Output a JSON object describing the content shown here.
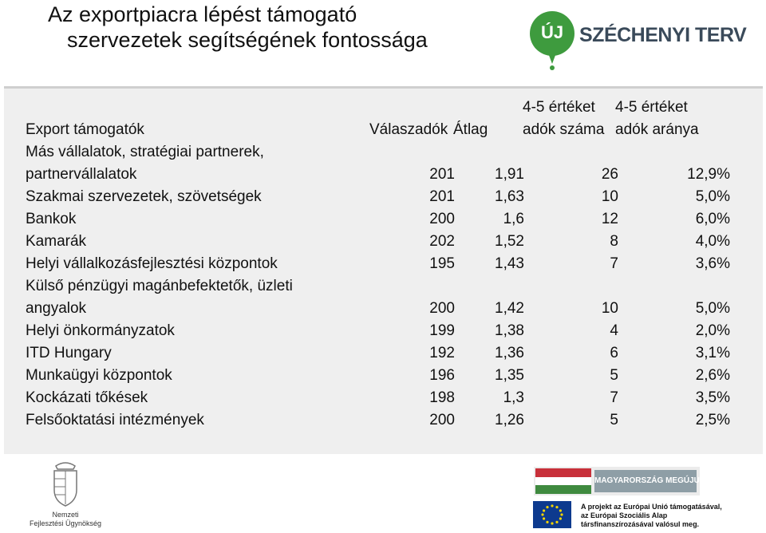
{
  "title": {
    "line1": "Az exportpiacra lépést támogató",
    "line2": "szervezetek segítségének fontossága"
  },
  "logo": {
    "badge": "ÚJ",
    "name": "SZÉCHENYI TERV",
    "color": "#3e9b3e"
  },
  "table": {
    "headers": {
      "label": "Export támogatók",
      "respondents": "Válaszadók",
      "average": "Átlag",
      "count_line1": "4-5 értéket",
      "count_line2": "adók száma",
      "ratio_line1": "4-5 értéket",
      "ratio_line2": "adók aránya"
    },
    "rows": [
      {
        "label_line1": "Más vállalatok, stratégiai partnerek,",
        "label": "partnervállalatok",
        "respondents": "201",
        "average": "1,91",
        "count": "26",
        "ratio": "12,9%"
      },
      {
        "label": "Szakmai szervezetek, szövetségek",
        "respondents": "201",
        "average": "1,63",
        "count": "10",
        "ratio": "5,0%"
      },
      {
        "label": "Bankok",
        "respondents": "200",
        "average": "1,6",
        "count": "12",
        "ratio": "6,0%"
      },
      {
        "label": "Kamarák",
        "respondents": "202",
        "average": "1,52",
        "count": "8",
        "ratio": "4,0%"
      },
      {
        "label": "Helyi vállalkozásfejlesztési központok",
        "respondents": "195",
        "average": "1,43",
        "count": "7",
        "ratio": "3,6%"
      },
      {
        "label_line1": "Külső pénzügyi magánbefektetők, üzleti",
        "label": "angyalok",
        "respondents": "200",
        "average": "1,42",
        "count": "10",
        "ratio": "5,0%"
      },
      {
        "label": "Helyi önkormányzatok",
        "respondents": "199",
        "average": "1,38",
        "count": "4",
        "ratio": "2,0%"
      },
      {
        "label": "ITD Hungary",
        "respondents": "192",
        "average": "1,36",
        "count": "6",
        "ratio": "3,1%"
      },
      {
        "label": "Munkaügyi központok",
        "respondents": "196",
        "average": "1,35",
        "count": "5",
        "ratio": "2,6%"
      },
      {
        "label": "Kockázati tőkések",
        "respondents": "198",
        "average": "1,3",
        "count": "7",
        "ratio": "3,5%"
      },
      {
        "label": "Felsőoktatási intézmények",
        "respondents": "200",
        "average": "1,26",
        "count": "5",
        "ratio": "2,5%"
      }
    ]
  },
  "footer": {
    "ndu_line1": "Nemzeti",
    "ndu_line2": "Fejlesztési Ügynökség",
    "mm_text": "MAGYARORSZÁG MEGÚJUL",
    "eu_line1": "A projekt az Európai Unió támogatásával,",
    "eu_line2": "az Európai Szociális Alap",
    "eu_line3": "társfinanszírozásával valósul meg."
  }
}
